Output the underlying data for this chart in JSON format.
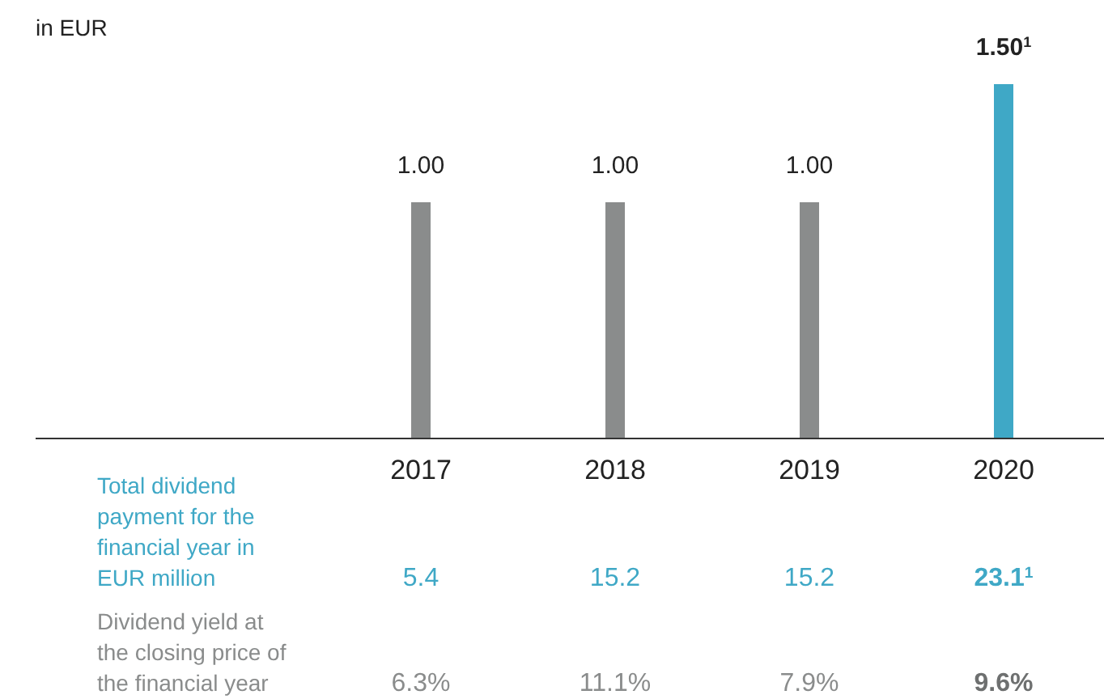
{
  "chart_data": {
    "type": "bar",
    "title": "in EUR",
    "categories": [
      "2017",
      "2018",
      "2019",
      "2020"
    ],
    "values": [
      1.0,
      1.0,
      1.0,
      1.5
    ],
    "colors": [
      "#8a8c8c",
      "#8a8c8c",
      "#8a8c8c",
      "#3fa8c6"
    ],
    "value_labels": [
      "1.00",
      "1.00",
      "1.00",
      "1.50$^{1}$"
    ],
    "ylim": [
      0,
      1.5
    ],
    "annotations": [
      "Total dividend payment for the financial year in EUR million",
      "5.4",
      "15.2",
      "15.2",
      "23.1$^{1}$",
      "Dividend yield at the closing price of the financial year",
      "6.3%",
      "11.1%",
      "7.9%",
      "9.6%"
    ]
  }
}
